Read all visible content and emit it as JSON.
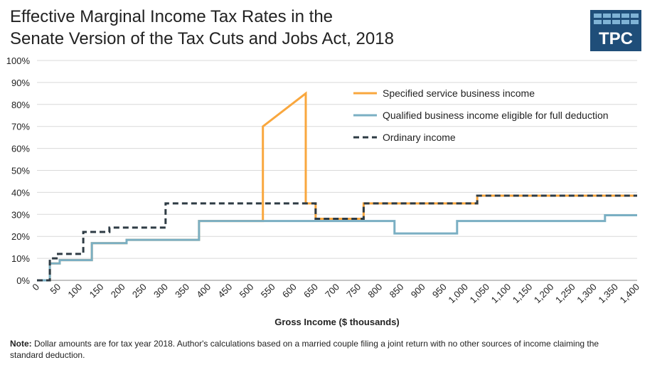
{
  "title_line1": "Effective Marginal Income Tax Rates in the",
  "title_line2": "Senate Version of the Tax Cuts and Jobs Act, 2018",
  "logo_text": "TPC",
  "note_label": "Note:",
  "note_text": " Dollar amounts are for tax year 2018. Author's calculations based on a married couple filing a joint return with no other sources of income claiming the standard deduction.",
  "colors": {
    "specified": "#f9a73e",
    "qualified": "#7aafc3",
    "ordinary": "#2e3b44",
    "grid": "#d9d9d9"
  },
  "chart_data": {
    "type": "line",
    "xlabel": "Gross Income ($ thousands)",
    "ylabel": "",
    "xlim": [
      0,
      1400
    ],
    "ylim": [
      0,
      100
    ],
    "x_ticks": [
      0,
      50,
      100,
      150,
      200,
      250,
      300,
      350,
      400,
      450,
      500,
      550,
      600,
      650,
      700,
      750,
      800,
      850,
      900,
      950,
      1000,
      1050,
      1100,
      1150,
      1200,
      1250,
      1300,
      1350,
      1400
    ],
    "x_tick_labels": [
      "0",
      "50",
      "100",
      "150",
      "200",
      "250",
      "300",
      "350",
      "400",
      "450",
      "500",
      "550",
      "600",
      "650",
      "700",
      "750",
      "800",
      "850",
      "900",
      "950",
      "1,000",
      "1,050",
      "1,100",
      "1,150",
      "1,200",
      "1,250",
      "1,300",
      "1,350",
      "1,400"
    ],
    "y_ticks": [
      0,
      10,
      20,
      30,
      40,
      50,
      60,
      70,
      80,
      90,
      100
    ],
    "y_tick_labels": [
      "0%",
      "10%",
      "20%",
      "30%",
      "40%",
      "50%",
      "60%",
      "70%",
      "80%",
      "90%",
      "100%"
    ],
    "grid": true,
    "legend_position": "top-right",
    "series": [
      {
        "name": "Specified service business income",
        "style": "solid",
        "color_key": "specified",
        "points": [
          [
            0,
            0
          ],
          [
            30,
            0
          ],
          [
            30,
            7.7
          ],
          [
            53,
            7.7
          ],
          [
            53,
            9.2
          ],
          [
            128,
            9.2
          ],
          [
            128,
            16.9
          ],
          [
            209,
            16.9
          ],
          [
            209,
            18.4
          ],
          [
            378,
            18.4
          ],
          [
            378,
            27
          ],
          [
            527,
            27
          ],
          [
            527,
            70
          ],
          [
            627,
            85
          ],
          [
            627,
            35
          ],
          [
            650,
            35
          ],
          [
            650,
            28
          ],
          [
            762,
            28
          ],
          [
            762,
            35
          ],
          [
            1027,
            35
          ],
          [
            1027,
            38.5
          ],
          [
            1400,
            38.5
          ]
        ]
      },
      {
        "name": "Qualified business income eligible for full deduction",
        "style": "solid",
        "color_key": "qualified",
        "points": [
          [
            0,
            0
          ],
          [
            30,
            0
          ],
          [
            30,
            7.7
          ],
          [
            53,
            7.7
          ],
          [
            53,
            9.2
          ],
          [
            128,
            9.2
          ],
          [
            128,
            16.9
          ],
          [
            209,
            16.9
          ],
          [
            209,
            18.4
          ],
          [
            378,
            18.4
          ],
          [
            378,
            27
          ],
          [
            834,
            27
          ],
          [
            834,
            21.3
          ],
          [
            980,
            21.3
          ],
          [
            980,
            27
          ],
          [
            1325,
            27
          ],
          [
            1325,
            29.6
          ],
          [
            1400,
            29.6
          ]
        ]
      },
      {
        "name": "Ordinary income",
        "style": "dashed",
        "color_key": "ordinary",
        "points": [
          [
            0,
            0
          ],
          [
            30,
            0
          ],
          [
            30,
            10
          ],
          [
            49,
            10
          ],
          [
            49,
            12
          ],
          [
            108,
            12
          ],
          [
            108,
            22
          ],
          [
            169,
            22
          ],
          [
            169,
            24
          ],
          [
            300,
            24
          ],
          [
            300,
            35
          ],
          [
            650,
            35
          ],
          [
            650,
            28
          ],
          [
            762,
            28
          ],
          [
            762,
            35
          ],
          [
            1027,
            35
          ],
          [
            1027,
            38.5
          ],
          [
            1400,
            38.5
          ]
        ]
      }
    ]
  }
}
